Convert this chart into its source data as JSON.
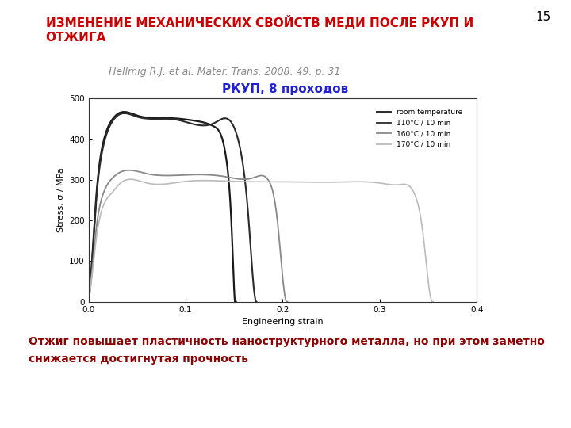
{
  "title_line1": "ИЗМЕНЕНИЕ МЕХАНИЧЕСКИХ СВОЙСТВ МЕДИ ПОСЛЕ РКУП И",
  "title_line2": "ОТЖИГА",
  "title_color": "#cc0000",
  "slide_number": "15",
  "reference": "Hellmig R.J. et al. Mater. Trans. 2008. 49. p. 31",
  "reference_color": "#888888",
  "subtitle": "РКУП, 8 проходов",
  "subtitle_color": "#2222cc",
  "xlabel": "Engineering strain",
  "ylabel": "Stress, σ / MPa",
  "xlim": [
    0,
    0.4
  ],
  "ylim": [
    0,
    500
  ],
  "xticks": [
    0,
    0.1,
    0.2,
    0.3,
    0.4
  ],
  "yticks": [
    0,
    100,
    200,
    300,
    400,
    500
  ],
  "legend_labels": [
    "room temperature",
    "110°C / 10 min",
    "160°C / 10 min",
    "170°C / 10 min"
  ],
  "curve_colors": [
    "#1a1a1a",
    "#2a2a2a",
    "#888888",
    "#bbbbbb"
  ],
  "bottom_text_line1": "Отжиг повышает пластичность наноструктурного металла, но при этом заметно",
  "bottom_text_line2": "снижается достигнутая прочность",
  "bottom_text_color": "#8b0000",
  "background_color": "#ffffff",
  "fig_width": 7.2,
  "fig_height": 5.4,
  "dpi": 100
}
